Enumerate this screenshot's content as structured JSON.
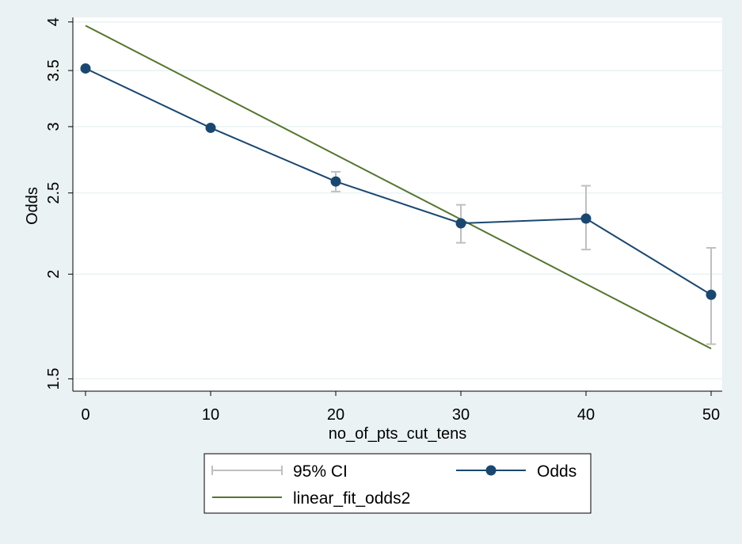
{
  "chart_data": {
    "type": "line",
    "xlabel": "no_of_pts_cut_tens",
    "ylabel": "Odds",
    "x_ticks": [
      "0",
      "10",
      "20",
      "30",
      "40",
      "50"
    ],
    "y_ticks": [
      "1.5",
      "2",
      "2.5",
      "3",
      "3.5",
      "4"
    ],
    "xlim": [
      -1,
      51
    ],
    "ylim": [
      1.45,
      4.05
    ],
    "y_scale": "log",
    "grid": "horizontal",
    "legend_position": "bottom",
    "series": [
      {
        "name": "Odds",
        "kind": "line-markers",
        "color": "#1a476f",
        "x": [
          0,
          10,
          20,
          30,
          40,
          50
        ],
        "y": [
          3.52,
          2.99,
          2.58,
          2.3,
          2.33,
          1.89
        ]
      },
      {
        "name": "linear_fit_odds2",
        "kind": "line",
        "color": "#55752f",
        "x": [
          0,
          50
        ],
        "y": [
          3.96,
          1.63
        ]
      },
      {
        "name": "95% CI",
        "kind": "error-bars",
        "color": "#bfbfbf",
        "x": [
          20,
          30,
          40,
          50
        ],
        "lower": [
          2.51,
          2.18,
          2.14,
          1.65
        ],
        "upper": [
          2.65,
          2.42,
          2.55,
          2.15
        ]
      }
    ],
    "legend": {
      "ci_label": "95% CI",
      "odds_label": "Odds",
      "fit_label": "linear_fit_odds2"
    }
  }
}
